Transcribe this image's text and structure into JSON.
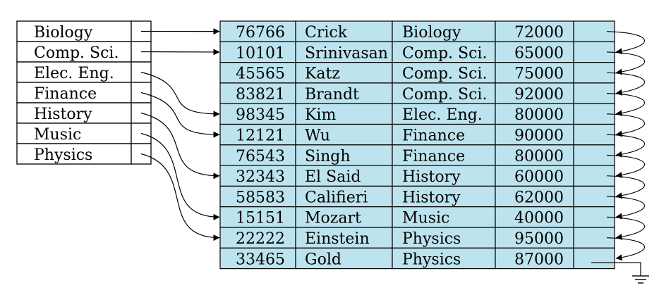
{
  "index": {
    "keys": [
      "Biology",
      "Comp. Sci.",
      "Elec. Eng.",
      "Finance",
      "History",
      "Music",
      "Physics"
    ],
    "targets": [
      0,
      1,
      4,
      5,
      7,
      9,
      10
    ]
  },
  "records": [
    {
      "id": "76766",
      "name": "Crick",
      "dept": "Biology",
      "salary": "72000"
    },
    {
      "id": "10101",
      "name": "Srinivasan",
      "dept": "Comp. Sci.",
      "salary": "65000"
    },
    {
      "id": "45565",
      "name": "Katz",
      "dept": "Comp. Sci.",
      "salary": "75000"
    },
    {
      "id": "83821",
      "name": "Brandt",
      "dept": "Comp. Sci.",
      "salary": "92000"
    },
    {
      "id": "98345",
      "name": "Kim",
      "dept": "Elec. Eng.",
      "salary": "80000"
    },
    {
      "id": "12121",
      "name": "Wu",
      "dept": "Finance",
      "salary": "90000"
    },
    {
      "id": "76543",
      "name": "Singh",
      "dept": "Finance",
      "salary": "80000"
    },
    {
      "id": "32343",
      "name": "El Said",
      "dept": "History",
      "salary": "60000"
    },
    {
      "id": "58583",
      "name": "Califieri",
      "dept": "History",
      "salary": "62000"
    },
    {
      "id": "15151",
      "name": "Mozart",
      "dept": "Music",
      "salary": "40000"
    },
    {
      "id": "22222",
      "name": "Einstein",
      "dept": "Physics",
      "salary": "95000"
    },
    {
      "id": "33465",
      "name": "Gold",
      "dept": "Physics",
      "salary": "87000"
    }
  ],
  "colors": {
    "record_fill": "#bde3ee",
    "line": "#000000"
  }
}
